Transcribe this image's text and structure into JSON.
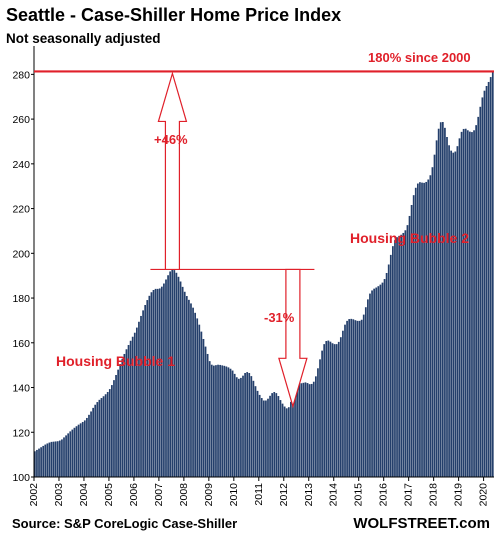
{
  "title": "Seattle - Case-Shiller Home Price Index",
  "subtitle": "Not seasonally adjusted",
  "source": "Source: S&P CoreLogic Case-Shiller",
  "brand": "WOLFSTREET.com",
  "colors": {
    "bar": "#243f6b",
    "accent": "#e0202a",
    "axis": "#000000"
  },
  "chart_data": {
    "type": "bar",
    "title": "Seattle - Case-Shiller Home Price Index",
    "subtitle": "Not seasonally adjusted",
    "xlabel": "",
    "ylabel": "",
    "ylim": [
      100,
      290
    ],
    "yticks": [
      100,
      120,
      140,
      160,
      180,
      200,
      220,
      240,
      260,
      280
    ],
    "xticks": [
      "2002",
      "2003",
      "2004",
      "2005",
      "2006",
      "2007",
      "2008",
      "2009",
      "2010",
      "2011",
      "2012",
      "2013",
      "2014",
      "2015",
      "2016",
      "2017",
      "2018",
      "2019",
      "2020"
    ],
    "frequency": "monthly",
    "start": "2002-01",
    "values": [
      111.5,
      112.1,
      112.7,
      113.3,
      113.9,
      114.5,
      115.0,
      115.4,
      115.7,
      115.8,
      115.9,
      116.0,
      116.3,
      116.8,
      117.7,
      118.6,
      119.5,
      120.4,
      121.2,
      122.0,
      122.7,
      123.4,
      124.0,
      124.6,
      125.3,
      126.4,
      127.8,
      129.3,
      130.9,
      132.3,
      133.5,
      134.5,
      135.3,
      136.1,
      137.0,
      138.0,
      139.3,
      141.1,
      143.3,
      145.6,
      148.0,
      150.5,
      152.8,
      155.0,
      157.1,
      159.0,
      160.9,
      162.7,
      164.5,
      166.8,
      169.4,
      172.0,
      174.5,
      176.9,
      179.1,
      181.0,
      182.6,
      183.6,
      184.1,
      184.1,
      184.3,
      185.1,
      186.5,
      188.3,
      190.2,
      191.9,
      192.8,
      192.5,
      191.3,
      189.5,
      187.4,
      185.0,
      182.8,
      180.9,
      179.2,
      177.6,
      175.7,
      173.4,
      170.9,
      168.1,
      165.0,
      161.7,
      158.3,
      155.0,
      151.8,
      150.2,
      149.8,
      150.0,
      150.2,
      150.1,
      149.9,
      149.7,
      149.4,
      149.0,
      148.4,
      147.6,
      146.1,
      144.6,
      143.9,
      144.3,
      145.3,
      146.5,
      146.9,
      146.5,
      145.1,
      143.0,
      140.6,
      138.5,
      136.7,
      135.3,
      134.2,
      134.2,
      135.0,
      136.3,
      137.5,
      138.0,
      137.5,
      136.2,
      134.4,
      132.8,
      131.5,
      130.7,
      131.2,
      133.6,
      137.1,
      140.0,
      141.5,
      141.8,
      141.9,
      142.1,
      142.3,
      142.0,
      141.5,
      141.6,
      142.6,
      145.0,
      148.6,
      152.6,
      156.5,
      159.4,
      160.8,
      161.0,
      160.5,
      159.8,
      159.4,
      159.4,
      160.4,
      162.5,
      165.4,
      168.1,
      169.8,
      170.6,
      170.7,
      170.5,
      170.1,
      169.8,
      169.8,
      170.3,
      172.6,
      175.9,
      179.4,
      182.0,
      183.4,
      184.2,
      184.7,
      185.3,
      186.0,
      186.9,
      188.5,
      191.2,
      195.0,
      199.3,
      203.2,
      205.9,
      207.2,
      207.8,
      208.3,
      209.1,
      210.3,
      212.6,
      216.7,
      221.6,
      226.0,
      229.3,
      231.2,
      231.8,
      231.6,
      231.5,
      231.9,
      233.0,
      234.9,
      238.5,
      244.1,
      250.5,
      255.7,
      258.6,
      258.7,
      256.1,
      252.0,
      248.3,
      245.9,
      245.0,
      245.5,
      247.9,
      251.4,
      254.3,
      255.6,
      255.7,
      255.0,
      254.4,
      254.2,
      255.0,
      257.3,
      261.0,
      265.5,
      269.7,
      272.7,
      274.8,
      276.6,
      278.8,
      281.3
    ]
  },
  "annotations": {
    "rise_label": "+46%",
    "drop_label": "-31%",
    "since_label": "180% since 2000",
    "bubble1_label": "Housing Bubble 1",
    "bubble2_label": "Housing Bubble 2"
  }
}
